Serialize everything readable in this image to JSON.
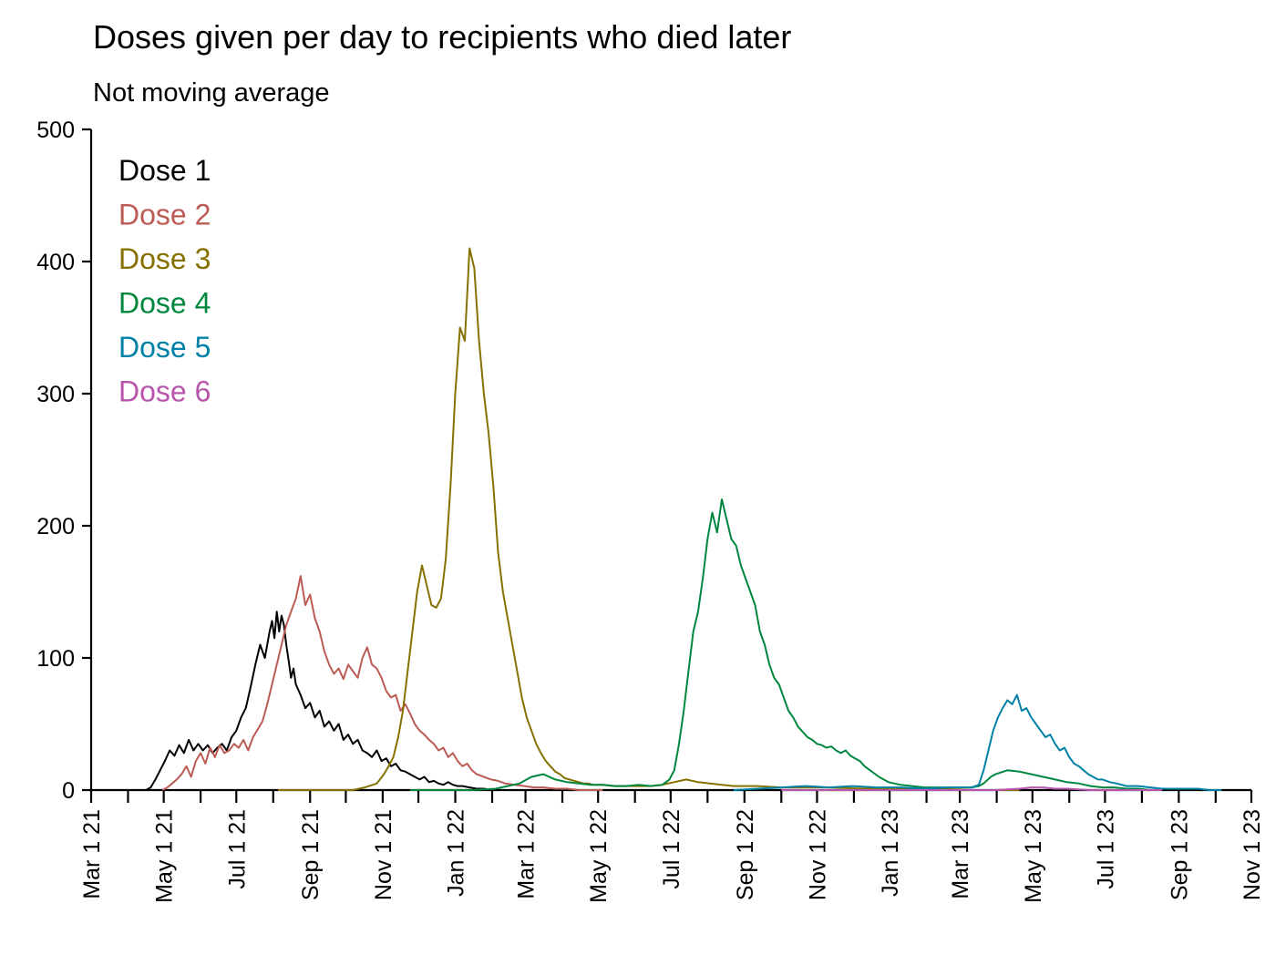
{
  "chart_data": {
    "type": "line",
    "title": "Doses given per day to recipients who died later",
    "subtitle": "Not moving average",
    "xlabel": "",
    "ylabel": "",
    "ylim": [
      0,
      500
    ],
    "yticks": [
      0,
      100,
      200,
      300,
      400,
      500
    ],
    "ytick_labels": [
      "0",
      "100",
      "200",
      "300",
      "400",
      "500"
    ],
    "x_start": "2021-03-01",
    "x_end": "2023-11-01",
    "xtick_labels": [
      "Mar 1 21",
      "May 1 21",
      "Jul 1 21",
      "Sep 1 21",
      "Nov 1 21",
      "Jan 1 22",
      "Mar 1 22",
      "May 1 22",
      "Jul 1 22",
      "Sep 1 22",
      "Nov 1 22",
      "Jan 1 23",
      "Mar 1 23",
      "May 1 23",
      "Jul 1 23",
      "Sep 1 23",
      "Nov 1 23"
    ],
    "xtick_days": [
      0,
      61,
      122,
      184,
      245,
      306,
      365,
      426,
      487,
      549,
      610,
      671,
      730,
      791,
      852,
      914,
      975
    ],
    "minor_tick_days": [
      31,
      92,
      153,
      214,
      275,
      337,
      396,
      457,
      518,
      580,
      641,
      702,
      761,
      822,
      883,
      945
    ],
    "legend": {
      "placement": "top-left"
    },
    "x_units": "days since Mar 1 21",
    "series": [
      {
        "name": "Dose 1",
        "color": "#000000",
        "x": [
          46,
          50,
          54,
          58,
          62,
          66,
          70,
          74,
          78,
          82,
          86,
          90,
          94,
          98,
          102,
          106,
          110,
          114,
          118,
          122,
          126,
          130,
          134,
          138,
          142,
          146,
          150,
          152,
          154,
          156,
          158,
          160,
          162,
          164,
          166,
          168,
          170,
          172,
          176,
          180,
          184,
          188,
          192,
          196,
          200,
          204,
          208,
          212,
          216,
          220,
          224,
          228,
          232,
          236,
          240,
          244,
          248,
          252,
          256,
          260,
          264,
          268,
          272,
          276,
          280,
          284,
          288,
          292,
          296,
          300,
          304,
          308,
          312,
          318,
          324,
          330,
          337
        ],
        "values": [
          0,
          2,
          8,
          15,
          22,
          30,
          26,
          34,
          28,
          38,
          30,
          35,
          30,
          34,
          28,
          32,
          35,
          30,
          40,
          45,
          55,
          62,
          78,
          95,
          110,
          100,
          120,
          128,
          115,
          135,
          120,
          132,
          125,
          110,
          98,
          85,
          92,
          80,
          72,
          62,
          66,
          55,
          60,
          48,
          52,
          45,
          50,
          38,
          42,
          35,
          38,
          30,
          28,
          25,
          30,
          22,
          24,
          18,
          20,
          15,
          14,
          12,
          10,
          8,
          10,
          6,
          7,
          5,
          4,
          6,
          4,
          3,
          3,
          2,
          1,
          1,
          0
        ]
      },
      {
        "name": "Dose 2",
        "color": "#BC5B54",
        "x": [
          60,
          64,
          68,
          72,
          76,
          80,
          84,
          88,
          92,
          96,
          100,
          104,
          108,
          112,
          116,
          120,
          124,
          128,
          132,
          136,
          140,
          144,
          148,
          152,
          156,
          160,
          164,
          168,
          172,
          176,
          180,
          184,
          188,
          192,
          196,
          200,
          204,
          208,
          212,
          216,
          220,
          224,
          228,
          232,
          236,
          240,
          244,
          248,
          252,
          256,
          260,
          264,
          268,
          272,
          276,
          280,
          284,
          288,
          292,
          296,
          300,
          304,
          308,
          312,
          316,
          320,
          324,
          330,
          336,
          342,
          348,
          356,
          364,
          372,
          380,
          390,
          400,
          410,
          420,
          430
        ],
        "values": [
          0,
          2,
          5,
          8,
          12,
          18,
          10,
          22,
          28,
          20,
          32,
          25,
          34,
          28,
          30,
          35,
          32,
          38,
          30,
          40,
          46,
          52,
          65,
          80,
          95,
          110,
          125,
          135,
          145,
          162,
          140,
          148,
          130,
          120,
          105,
          95,
          88,
          92,
          84,
          95,
          90,
          85,
          100,
          108,
          95,
          92,
          85,
          75,
          70,
          72,
          60,
          65,
          58,
          50,
          45,
          42,
          38,
          35,
          30,
          32,
          25,
          28,
          22,
          18,
          20,
          15,
          12,
          10,
          8,
          7,
          5,
          4,
          3,
          2,
          2,
          1,
          1,
          0,
          0,
          0
        ]
      },
      {
        "name": "Dose 3",
        "color": "#857000",
        "x": [
          157,
          180,
          200,
          220,
          230,
          240,
          246,
          250,
          254,
          258,
          262,
          266,
          270,
          274,
          278,
          282,
          286,
          290,
          294,
          298,
          302,
          306,
          310,
          314,
          318,
          322,
          326,
          330,
          334,
          338,
          342,
          346,
          350,
          354,
          358,
          362,
          366,
          370,
          374,
          378,
          382,
          386,
          390,
          394,
          398,
          402,
          406,
          410,
          414,
          418,
          422,
          430,
          440,
          450,
          460,
          470,
          480,
          490,
          500,
          510,
          520,
          530,
          540,
          560,
          580,
          600,
          620,
          650,
          680,
          710,
          740,
          760,
          780
        ],
        "values": [
          0,
          0,
          0,
          0,
          2,
          5,
          12,
          18,
          25,
          40,
          60,
          90,
          120,
          150,
          170,
          155,
          140,
          138,
          145,
          175,
          230,
          300,
          350,
          340,
          410,
          395,
          340,
          300,
          270,
          230,
          180,
          150,
          130,
          110,
          90,
          70,
          55,
          45,
          35,
          28,
          22,
          18,
          14,
          12,
          9,
          8,
          7,
          6,
          5,
          5,
          4,
          4,
          3,
          3,
          3,
          3,
          4,
          6,
          8,
          6,
          5,
          4,
          3,
          3,
          2,
          2,
          2,
          1,
          1,
          1,
          0,
          0,
          0
        ]
      },
      {
        "name": "Dose 4",
        "color": "#00873E",
        "x": [
          268,
          300,
          320,
          340,
          350,
          360,
          370,
          380,
          390,
          400,
          410,
          420,
          430,
          440,
          450,
          460,
          470,
          480,
          486,
          490,
          494,
          498,
          502,
          506,
          510,
          514,
          518,
          522,
          526,
          530,
          534,
          538,
          542,
          546,
          550,
          554,
          558,
          562,
          566,
          570,
          574,
          578,
          582,
          586,
          590,
          594,
          598,
          602,
          606,
          610,
          614,
          618,
          622,
          626,
          630,
          634,
          638,
          642,
          646,
          650,
          656,
          662,
          670,
          680,
          690,
          700,
          710,
          720,
          730,
          740,
          746,
          750,
          756,
          760,
          770,
          780,
          790,
          800,
          810,
          820,
          830,
          840,
          850,
          860,
          870,
          880,
          890,
          900
        ],
        "values": [
          0,
          0,
          0,
          1,
          3,
          5,
          10,
          12,
          8,
          6,
          5,
          4,
          4,
          3,
          3,
          4,
          3,
          4,
          8,
          15,
          35,
          60,
          90,
          120,
          135,
          160,
          190,
          210,
          195,
          220,
          205,
          190,
          185,
          170,
          160,
          150,
          140,
          120,
          110,
          95,
          85,
          80,
          70,
          60,
          55,
          48,
          44,
          40,
          38,
          35,
          34,
          32,
          33,
          30,
          28,
          30,
          26,
          24,
          22,
          18,
          14,
          10,
          6,
          4,
          3,
          2,
          2,
          2,
          2,
          2,
          3,
          5,
          10,
          12,
          15,
          14,
          12,
          10,
          8,
          6,
          5,
          3,
          2,
          2,
          1,
          1,
          0,
          0
        ]
      },
      {
        "name": "Dose 5",
        "color": "#0081A7",
        "x": [
          540,
          560,
          580,
          600,
          620,
          640,
          660,
          680,
          700,
          720,
          740,
          746,
          750,
          754,
          758,
          762,
          766,
          770,
          774,
          778,
          782,
          786,
          790,
          794,
          798,
          802,
          806,
          810,
          814,
          818,
          822,
          826,
          830,
          834,
          838,
          842,
          846,
          850,
          856,
          862,
          870,
          880,
          890,
          900,
          910,
          920,
          930,
          940,
          950
        ],
        "values": [
          0,
          1,
          2,
          3,
          2,
          3,
          2,
          2,
          1,
          2,
          2,
          4,
          15,
          30,
          45,
          55,
          62,
          68,
          65,
          72,
          60,
          62,
          55,
          50,
          45,
          40,
          42,
          35,
          30,
          32,
          25,
          20,
          18,
          15,
          12,
          10,
          8,
          8,
          6,
          5,
          3,
          3,
          2,
          1,
          1,
          1,
          1,
          0,
          0
        ]
      },
      {
        "name": "Dose 6",
        "color": "#B954AC",
        "x": [
          580,
          650,
          700,
          740,
          760,
          780,
          790,
          800,
          810,
          820,
          840,
          860,
          880,
          900
        ],
        "values": [
          0,
          0,
          0,
          0,
          0,
          1,
          2,
          2,
          1,
          1,
          0,
          0,
          0,
          0
        ]
      }
    ]
  }
}
